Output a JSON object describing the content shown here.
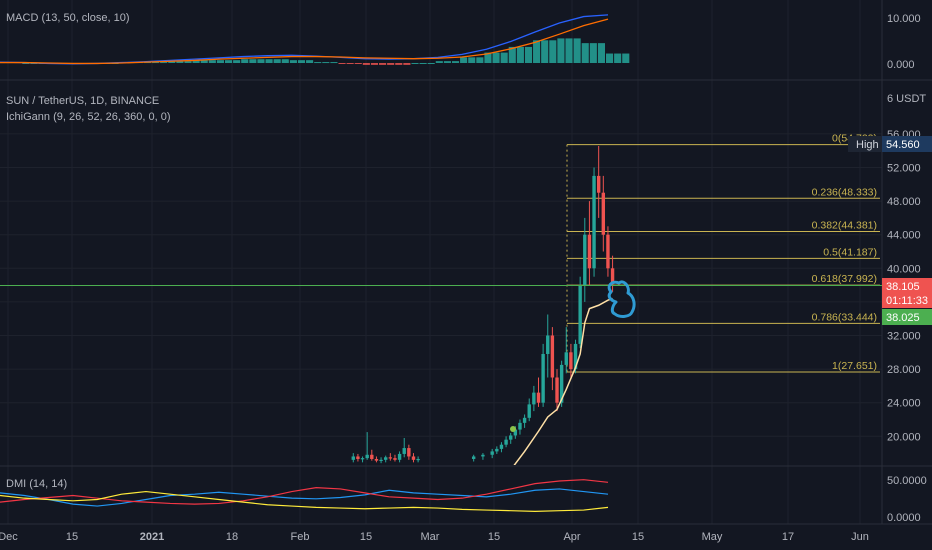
{
  "colors": {
    "background": "#131722",
    "grid": "#1e222d",
    "separator": "#2a2e39",
    "axis_text": "#b2b5be",
    "up": "#26a69a",
    "down": "#ef5350",
    "fib": "#c9b451",
    "kijun": "#ffe0a6",
    "crosshair": "#4caf50",
    "drawing": "#2f9bd3",
    "macd_line": "#2962ff",
    "signal_line": "#ff6d00",
    "dmi_plus": "#2196f3",
    "dmi_minus": "#f23645",
    "adx": "#ffeb3b"
  },
  "macd": {
    "title": "MACD (13, 50, close, 10)",
    "axis_labels": [
      "10.000",
      "0.000"
    ]
  },
  "price": {
    "title": "SUN / TetherUS, 1D, BINANCE",
    "indicator_title": "IchiGann (9, 26, 52, 26, 360, 0, 0)",
    "unit_label": "6 USDT",
    "axis_labels": [
      "56.000",
      "52.000",
      "48.000",
      "44.000",
      "40.000",
      "36.000",
      "32.000",
      "28.000",
      "24.000",
      "20.000"
    ],
    "high_label": "High",
    "high_value": "54.560",
    "last_price": "38.105",
    "countdown": "01:11:33",
    "bid_price": "38.025"
  },
  "dmi": {
    "title": "DMI (14, 14)",
    "axis_labels": [
      "50.0000",
      "0.0000"
    ]
  },
  "time_axis": {
    "labels": [
      "Dec",
      "15",
      "2021",
      "18",
      "Feb",
      "15",
      "Mar",
      "15",
      "Apr",
      "15",
      "May",
      "17",
      "Jun"
    ]
  },
  "chart_data": {
    "type": "candlestick",
    "title": "SUN / TetherUS, 1D, BINANCE",
    "x_range": [
      "2020-11-27",
      "2021-06-08"
    ],
    "y_range": [
      16.5,
      58.0
    ],
    "fib_levels": [
      {
        "label": "0(54.722)",
        "value": 54.722
      },
      {
        "label": "0.236(48.333)",
        "value": 48.333
      },
      {
        "label": "0.382(44.381)",
        "value": 44.381
      },
      {
        "label": "0.5(41.187)",
        "value": 41.187
      },
      {
        "label": "0.618(37.992)",
        "value": 37.992
      },
      {
        "label": "0.786(33.444)",
        "value": 33.444
      },
      {
        "label": "1(27.651)",
        "value": 27.651
      }
    ],
    "candles": [
      {
        "date": "2021-02-12",
        "o": 17.2,
        "h": 18.0,
        "l": 16.9,
        "c": 17.6
      },
      {
        "date": "2021-02-13",
        "o": 17.6,
        "h": 17.9,
        "l": 17.0,
        "c": 17.3
      },
      {
        "date": "2021-02-14",
        "o": 17.3,
        "h": 17.6,
        "l": 16.9,
        "c": 17.4
      },
      {
        "date": "2021-02-15",
        "o": 17.4,
        "h": 20.5,
        "l": 17.2,
        "c": 17.8
      },
      {
        "date": "2021-02-16",
        "o": 17.8,
        "h": 18.4,
        "l": 17.1,
        "c": 17.3
      },
      {
        "date": "2021-02-17",
        "o": 17.3,
        "h": 17.6,
        "l": 16.9,
        "c": 17.1
      },
      {
        "date": "2021-02-18",
        "o": 17.1,
        "h": 17.5,
        "l": 16.8,
        "c": 17.2
      },
      {
        "date": "2021-02-19",
        "o": 17.2,
        "h": 17.7,
        "l": 16.9,
        "c": 17.5
      },
      {
        "date": "2021-02-20",
        "o": 17.5,
        "h": 18.0,
        "l": 17.1,
        "c": 17.4
      },
      {
        "date": "2021-02-21",
        "o": 17.4,
        "h": 17.8,
        "l": 17.0,
        "c": 17.2
      },
      {
        "date": "2021-02-22",
        "o": 17.2,
        "h": 18.2,
        "l": 16.9,
        "c": 17.9
      },
      {
        "date": "2021-02-23",
        "o": 17.9,
        "h": 19.8,
        "l": 17.5,
        "c": 18.6
      },
      {
        "date": "2021-02-24",
        "o": 18.6,
        "h": 19.0,
        "l": 17.2,
        "c": 17.6
      },
      {
        "date": "2021-02-25",
        "o": 17.6,
        "h": 18.0,
        "l": 16.9,
        "c": 17.2
      },
      {
        "date": "2021-02-26",
        "o": 17.2,
        "h": 17.6,
        "l": 16.9,
        "c": 17.3
      },
      {
        "date": "2021-03-10",
        "o": 17.3,
        "h": 17.8,
        "l": 17.0,
        "c": 17.6
      },
      {
        "date": "2021-03-12",
        "o": 17.6,
        "h": 18.0,
        "l": 17.2,
        "c": 17.8
      },
      {
        "date": "2021-03-14",
        "o": 17.8,
        "h": 18.5,
        "l": 17.4,
        "c": 18.2
      },
      {
        "date": "2021-03-15",
        "o": 18.2,
        "h": 18.8,
        "l": 17.9,
        "c": 18.5
      },
      {
        "date": "2021-03-16",
        "o": 18.5,
        "h": 19.3,
        "l": 18.1,
        "c": 19.0
      },
      {
        "date": "2021-03-17",
        "o": 19.0,
        "h": 20.0,
        "l": 18.7,
        "c": 19.6
      },
      {
        "date": "2021-03-18",
        "o": 19.6,
        "h": 20.4,
        "l": 19.1,
        "c": 20.1
      },
      {
        "date": "2021-03-19",
        "o": 20.1,
        "h": 21.2,
        "l": 19.7,
        "c": 20.8
      },
      {
        "date": "2021-03-20",
        "o": 20.8,
        "h": 22.0,
        "l": 20.2,
        "c": 21.6
      },
      {
        "date": "2021-03-21",
        "o": 21.6,
        "h": 22.6,
        "l": 21.0,
        "c": 22.2
      },
      {
        "date": "2021-03-22",
        "o": 22.2,
        "h": 24.5,
        "l": 21.8,
        "c": 23.8
      },
      {
        "date": "2021-03-23",
        "o": 23.8,
        "h": 26.0,
        "l": 23.0,
        "c": 25.2
      },
      {
        "date": "2021-03-24",
        "o": 25.2,
        "h": 27.0,
        "l": 23.5,
        "c": 24.0
      },
      {
        "date": "2021-03-25",
        "o": 24.0,
        "h": 31.0,
        "l": 23.5,
        "c": 29.8
      },
      {
        "date": "2021-03-26",
        "o": 29.8,
        "h": 34.5,
        "l": 27.0,
        "c": 32.0
      },
      {
        "date": "2021-03-27",
        "o": 32.0,
        "h": 33.0,
        "l": 25.5,
        "c": 27.0
      },
      {
        "date": "2021-03-28",
        "o": 27.0,
        "h": 28.0,
        "l": 23.0,
        "c": 24.0
      },
      {
        "date": "2021-03-29",
        "o": 24.0,
        "h": 29.0,
        "l": 23.5,
        "c": 28.5
      },
      {
        "date": "2021-03-30",
        "o": 28.5,
        "h": 33.0,
        "l": 27.5,
        "c": 30.0
      },
      {
        "date": "2021-03-31",
        "o": 30.0,
        "h": 31.0,
        "l": 27.0,
        "c": 28.0
      },
      {
        "date": "2021-04-01",
        "o": 28.0,
        "h": 31.5,
        "l": 27.5,
        "c": 31.0
      },
      {
        "date": "2021-04-02",
        "o": 31.0,
        "h": 39.0,
        "l": 30.5,
        "c": 38.0
      },
      {
        "date": "2021-04-03",
        "o": 38.0,
        "h": 46.0,
        "l": 36.0,
        "c": 44.0
      },
      {
        "date": "2021-04-04",
        "o": 44.0,
        "h": 48.0,
        "l": 38.0,
        "c": 40.0
      },
      {
        "date": "2021-04-05",
        "o": 40.0,
        "h": 52.0,
        "l": 39.0,
        "c": 51.0
      },
      {
        "date": "2021-04-06",
        "o": 51.0,
        "h": 54.56,
        "l": 46.0,
        "c": 49.0
      },
      {
        "date": "2021-04-07",
        "o": 49.0,
        "h": 51.0,
        "l": 42.0,
        "c": 44.0
      },
      {
        "date": "2021-04-08",
        "o": 44.0,
        "h": 45.0,
        "l": 39.0,
        "c": 40.0
      },
      {
        "date": "2021-04-09",
        "o": 40.0,
        "h": 41.5,
        "l": 37.2,
        "c": 38.105
      }
    ],
    "kijun": [
      {
        "date": "2021-03-18",
        "v": 16.0
      },
      {
        "date": "2021-03-21",
        "v": 18.2
      },
      {
        "date": "2021-03-24",
        "v": 20.6
      },
      {
        "date": "2021-03-26",
        "v": 22.3
      },
      {
        "date": "2021-03-28",
        "v": 23.2
      },
      {
        "date": "2021-03-30",
        "v": 25.6
      },
      {
        "date": "2021-04-01",
        "v": 28.2
      },
      {
        "date": "2021-04-02",
        "v": 29.8
      },
      {
        "date": "2021-04-03",
        "v": 33.5
      },
      {
        "date": "2021-04-04",
        "v": 35.2
      },
      {
        "date": "2021-04-06",
        "v": 35.6
      },
      {
        "date": "2021-04-08",
        "v": 36.2
      },
      {
        "date": "2021-04-09",
        "v": 36.4
      }
    ],
    "macd_series": [
      {
        "name": "MACD",
        "values": [
          0.2,
          0.1,
          -0.1,
          -0.2,
          -0.1,
          0.1,
          0.3,
          0.6,
          0.9,
          1.2,
          1.5,
          1.7,
          1.8,
          1.6,
          1.3,
          1.0,
          0.9,
          1.0,
          1.3,
          2.0,
          3.2,
          5.0,
          7.2,
          9.3,
          10.8,
          11.2
        ]
      },
      {
        "name": "Signal",
        "values": [
          0.1,
          0.1,
          0.0,
          -0.1,
          -0.1,
          0.0,
          0.2,
          0.4,
          0.6,
          0.9,
          1.1,
          1.3,
          1.5,
          1.5,
          1.4,
          1.2,
          1.1,
          1.0,
          1.1,
          1.4,
          2.1,
          3.3,
          4.8,
          6.7,
          8.7,
          10.2
        ]
      }
    ],
    "dmi_series": [
      {
        "name": "+DI",
        "values": [
          32,
          28,
          22,
          15,
          12,
          16,
          22,
          28,
          30,
          33,
          30,
          27,
          24,
          23,
          25,
          29,
          36,
          32,
          30,
          28,
          26,
          30,
          36,
          38,
          34,
          30
        ]
      },
      {
        "name": "-DI",
        "values": [
          18,
          22,
          25,
          28,
          24,
          20,
          18,
          16,
          15,
          16,
          20,
          26,
          34,
          40,
          38,
          32,
          26,
          24,
          22,
          24,
          30,
          38,
          46,
          50,
          52,
          48
        ]
      },
      {
        "name": "ADX",
        "values": [
          28,
          24,
          22,
          20,
          22,
          30,
          34,
          30,
          26,
          22,
          18,
          14,
          12,
          10,
          9,
          8,
          9,
          10,
          9,
          7,
          6,
          5,
          4,
          5,
          6,
          10
        ]
      }
    ]
  }
}
